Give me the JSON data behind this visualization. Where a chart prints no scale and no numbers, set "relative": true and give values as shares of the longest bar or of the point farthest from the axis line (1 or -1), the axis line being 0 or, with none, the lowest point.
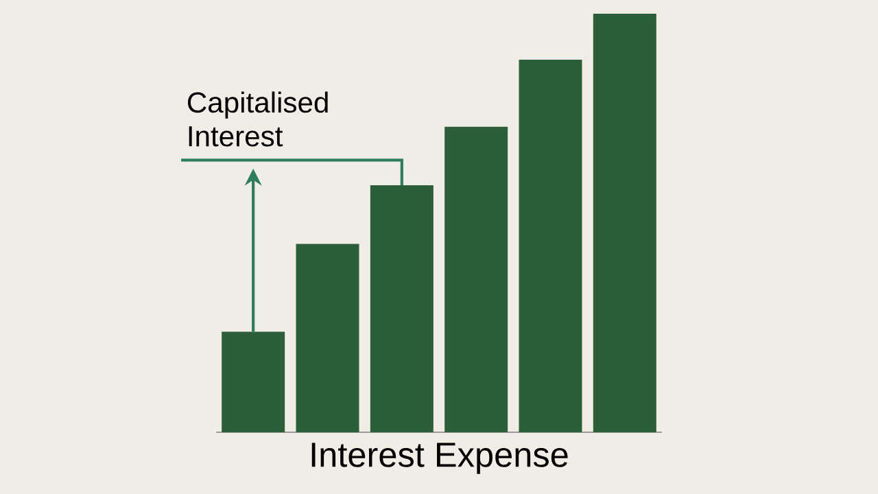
{
  "chart_data": {
    "type": "bar",
    "relative": true,
    "categories": [
      null,
      null,
      null,
      null,
      null,
      null
    ],
    "values": [
      0.24,
      0.45,
      0.59,
      0.73,
      0.89,
      1
    ],
    "color": "#2d5e3a",
    "xlabel": "Interest Expense",
    "annotations": [
      "Capitalised Interest"
    ]
  }
}
